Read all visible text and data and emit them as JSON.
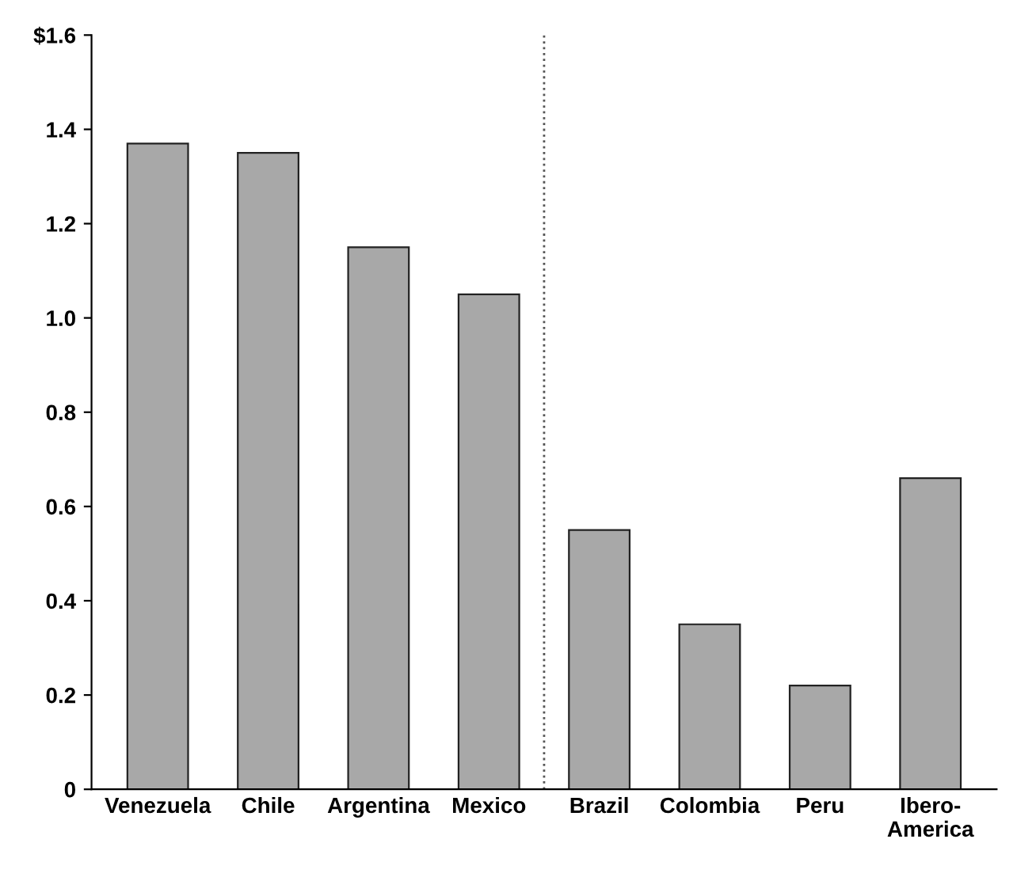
{
  "chart_data": {
    "type": "bar",
    "categories": [
      "Venezuela",
      "Chile",
      "Argentina",
      "Mexico",
      "Brazil",
      "Colombia",
      "Peru",
      "Ibero-\nAmerica"
    ],
    "values": [
      1.37,
      1.35,
      1.15,
      1.05,
      0.55,
      0.35,
      0.22,
      0.66
    ],
    "color": "#a8a8a8",
    "ylim": [
      0,
      1.6
    ],
    "yticks": [
      {
        "value": 0,
        "label": "0"
      },
      {
        "value": 0.2,
        "label": "0.2"
      },
      {
        "value": 0.4,
        "label": "0.4"
      },
      {
        "value": 0.6,
        "label": "0.6"
      },
      {
        "value": 0.8,
        "label": "0.8"
      },
      {
        "value": 1.0,
        "label": "1.0"
      },
      {
        "value": 1.2,
        "label": "1.2"
      },
      {
        "value": 1.4,
        "label": "1.4"
      },
      {
        "value": 1.6,
        "label": "$1.6"
      }
    ],
    "grid": false,
    "legend": false
  }
}
